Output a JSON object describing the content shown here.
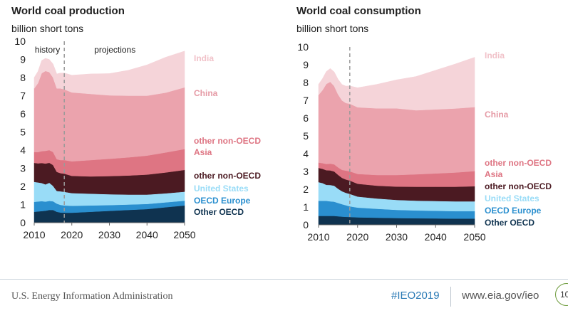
{
  "footer": {
    "agency": "U.S. Energy Information Administration",
    "hashtag": "#IEO2019",
    "url": "www.eia.gov/ieo",
    "page": "10"
  },
  "legend_colors": {
    "Other OECD": "#0f3350",
    "OECD Europe": "#2a8fcf",
    "United States": "#99dcf7",
    "other non-OECD": "#4b1a22",
    "other non-OECD Asia": "#de7583",
    "China": "#eba3ad",
    "India": "#f5d4d9"
  },
  "chart_data": [
    {
      "type": "area",
      "stacked": true,
      "title": "World coal production",
      "subtitle": "billion short tons",
      "xlim": [
        2010,
        2050
      ],
      "ylim": [
        0,
        10
      ],
      "xticks": [
        "2010",
        "2020",
        "2030",
        "2040",
        "2050"
      ],
      "yticks": [
        "0",
        "1",
        "2",
        "3",
        "4",
        "5",
        "6",
        "7",
        "8",
        "9",
        "10"
      ],
      "annotations": {
        "history": "history",
        "projections": "projections",
        "divider_year": 2018
      },
      "x": [
        2010,
        2011,
        2012,
        2013,
        2014,
        2015,
        2016,
        2017,
        2018,
        2020,
        2025,
        2030,
        2035,
        2040,
        2045,
        2050
      ],
      "series": [
        {
          "name": "Other OECD",
          "label": "Other OECD",
          "values": [
            0.6,
            0.62,
            0.64,
            0.66,
            0.7,
            0.7,
            0.6,
            0.56,
            0.55,
            0.55,
            0.6,
            0.65,
            0.7,
            0.75,
            0.85,
            0.95
          ]
        },
        {
          "name": "OECD Europe",
          "label": "OECD Europe",
          "values": [
            0.55,
            0.55,
            0.55,
            0.5,
            0.5,
            0.48,
            0.45,
            0.42,
            0.4,
            0.38,
            0.35,
            0.32,
            0.3,
            0.28,
            0.27,
            0.26
          ]
        },
        {
          "name": "United States",
          "label": "United States",
          "values": [
            1.1,
            1.05,
            1.0,
            0.95,
            1.0,
            0.85,
            0.7,
            0.75,
            0.75,
            0.7,
            0.65,
            0.6,
            0.55,
            0.52,
            0.5,
            0.5
          ]
        },
        {
          "name": "other non-OECD",
          "label": "other non-OECD",
          "values": [
            1.05,
            1.05,
            1.1,
            1.15,
            1.1,
            1.15,
            1.05,
            1.0,
            1.0,
            0.95,
            0.95,
            1.0,
            1.05,
            1.1,
            1.15,
            1.2
          ]
        },
        {
          "name": "other non-OECD Asia",
          "label": "other non-OECD Asia",
          "values": [
            0.6,
            0.62,
            0.65,
            0.7,
            0.7,
            0.72,
            0.7,
            0.72,
            0.75,
            0.8,
            0.9,
            0.95,
            1.0,
            1.05,
            1.1,
            1.15
          ]
        },
        {
          "name": "China",
          "label": "China",
          "values": [
            3.5,
            3.8,
            4.3,
            4.4,
            4.3,
            4.1,
            3.9,
            3.95,
            3.9,
            3.8,
            3.65,
            3.5,
            3.4,
            3.3,
            3.3,
            3.4
          ]
        },
        {
          "name": "India",
          "label": "India",
          "values": [
            0.6,
            0.65,
            0.7,
            0.7,
            0.7,
            0.75,
            0.8,
            0.85,
            0.9,
            0.95,
            1.1,
            1.2,
            1.4,
            1.7,
            1.95,
            2.0
          ]
        }
      ]
    },
    {
      "type": "area",
      "stacked": true,
      "title": "World coal consumption",
      "subtitle": "billion short tons",
      "xlim": [
        2010,
        2050
      ],
      "ylim": [
        0,
        10
      ],
      "xticks": [
        "2010",
        "2020",
        "2030",
        "2040",
        "2050"
      ],
      "yticks": [
        "0",
        "1",
        "2",
        "3",
        "4",
        "5",
        "6",
        "7",
        "8",
        "9",
        "10"
      ],
      "annotations": {
        "divider_year": 2018
      },
      "x": [
        2010,
        2011,
        2012,
        2013,
        2014,
        2015,
        2016,
        2017,
        2018,
        2020,
        2025,
        2030,
        2035,
        2040,
        2045,
        2050
      ],
      "series": [
        {
          "name": "Other OECD",
          "label": "Other OECD",
          "values": [
            0.5,
            0.5,
            0.5,
            0.5,
            0.5,
            0.48,
            0.46,
            0.45,
            0.44,
            0.42,
            0.4,
            0.38,
            0.37,
            0.36,
            0.35,
            0.35
          ]
        },
        {
          "name": "OECD Europe",
          "label": "OECD Europe",
          "values": [
            0.85,
            0.85,
            0.85,
            0.82,
            0.8,
            0.75,
            0.7,
            0.65,
            0.6,
            0.55,
            0.5,
            0.46,
            0.44,
            0.43,
            0.42,
            0.42
          ]
        },
        {
          "name": "United States",
          "label": "United States",
          "values": [
            1.05,
            1.0,
            0.9,
            0.92,
            0.9,
            0.8,
            0.73,
            0.7,
            0.7,
            0.62,
            0.58,
            0.56,
            0.55,
            0.55,
            0.55,
            0.55
          ]
        },
        {
          "name": "other non-OECD",
          "label": "other non-OECD",
          "values": [
            0.8,
            0.8,
            0.82,
            0.82,
            0.8,
            0.78,
            0.75,
            0.75,
            0.75,
            0.72,
            0.72,
            0.75,
            0.78,
            0.8,
            0.82,
            0.85
          ]
        },
        {
          "name": "other non-OECD Asia",
          "label": "other non-OECD Asia",
          "values": [
            0.3,
            0.32,
            0.35,
            0.38,
            0.4,
            0.42,
            0.45,
            0.5,
            0.52,
            0.55,
            0.6,
            0.65,
            0.7,
            0.75,
            0.8,
            0.85
          ]
        },
        {
          "name": "China",
          "label": "China",
          "values": [
            3.8,
            4.1,
            4.5,
            4.6,
            4.4,
            4.1,
            3.9,
            3.8,
            3.8,
            3.75,
            3.75,
            3.75,
            3.6,
            3.6,
            3.6,
            3.6
          ]
        },
        {
          "name": "India",
          "label": "India",
          "values": [
            0.6,
            0.65,
            0.7,
            0.75,
            0.8,
            0.85,
            0.9,
            0.95,
            1.0,
            1.1,
            1.35,
            1.6,
            1.9,
            2.2,
            2.5,
            2.8
          ]
        }
      ]
    }
  ]
}
